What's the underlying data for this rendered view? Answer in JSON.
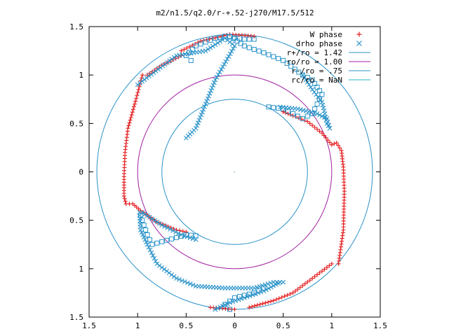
{
  "chart_data": {
    "type": "scatter",
    "title": "m2/n1.5/q2.0/r-+.52-j270/M17.5/512",
    "xlim": [
      -1.5,
      1.5
    ],
    "ylim": [
      -1.5,
      1.5
    ],
    "x_ticks": [
      -1.5,
      -1,
      -0.5,
      0,
      0.5,
      1,
      1.5
    ],
    "y_ticks": [
      -1.5,
      -1,
      -0.5,
      0,
      0.5,
      1,
      1.5
    ],
    "x_tick_labels": [
      "1.5",
      "1",
      "0.5",
      "0",
      "0.5",
      "1",
      "1.5"
    ],
    "y_tick_labels": [
      "1.5",
      "1",
      "0.5",
      "0",
      "0.5",
      "1",
      "1.5"
    ],
    "grid": false,
    "legend_position": "top-right",
    "circles": [
      {
        "name": "r+/ro = 1.42",
        "radius": 1.42,
        "color": "#2a93c9"
      },
      {
        "name": "ro/ro = 1.00",
        "radius": 1.0,
        "color": "#a020a0"
      },
      {
        "name": "r-/ro = .75",
        "radius": 0.75,
        "color": "#2a93c9"
      },
      {
        "name": "rc/ro = NaN",
        "radius": null,
        "color": "#25b6c9"
      }
    ],
    "series": [
      {
        "name": "W phase",
        "marker": "plus",
        "color": "#e41a1c",
        "arms": [
          [
            [
              1.07,
              -0.95
            ],
            [
              1.12,
              -0.6
            ],
            [
              1.13,
              -0.2
            ],
            [
              1.12,
              0.05
            ],
            [
              1.1,
              0.22
            ],
            [
              1.05,
              0.3
            ],
            [
              1.0,
              0.28
            ],
            [
              0.9,
              0.4
            ],
            [
              0.75,
              0.52
            ],
            [
              0.6,
              0.58
            ],
            [
              0.5,
              0.62
            ]
          ],
          [
            [
              -0.95,
              1.0
            ],
            [
              -1.03,
              0.7
            ],
            [
              -1.1,
              0.45
            ],
            [
              -1.13,
              0.2
            ],
            [
              -1.14,
              -0.05
            ],
            [
              -1.14,
              -0.25
            ],
            [
              -1.12,
              -0.33
            ],
            [
              -1.05,
              -0.33
            ],
            [
              -0.97,
              -0.4
            ],
            [
              -0.8,
              -0.52
            ],
            [
              -0.6,
              -0.6
            ],
            [
              -0.5,
              -0.62
            ]
          ],
          [
            [
              1.0,
              -0.95
            ],
            [
              0.8,
              -1.1
            ],
            [
              0.6,
              -1.25
            ],
            [
              0.4,
              -1.33
            ],
            [
              0.15,
              -1.4
            ]
          ],
          [
            [
              -0.55,
              1.2
            ],
            [
              -0.75,
              1.1
            ],
            [
              -0.9,
              1.0
            ]
          ],
          [
            [
              0.2,
              1.4
            ],
            [
              -0.05,
              1.42
            ],
            [
              -0.35,
              1.35
            ],
            [
              -0.55,
              1.25
            ]
          ],
          [
            [
              -0.25,
              -1.4
            ],
            [
              0.0,
              -1.42
            ]
          ]
        ]
      },
      {
        "name": "drho phase",
        "marker": "cross",
        "color": "#2a93c9",
        "arms": [
          [
            [
              0.47,
              0.67
            ],
            [
              0.65,
              0.65
            ],
            [
              0.85,
              0.6
            ],
            [
              0.95,
              0.55
            ],
            [
              0.98,
              0.45
            ],
            [
              0.95,
              0.5
            ],
            [
              0.93,
              0.6
            ],
            [
              0.9,
              0.72
            ],
            [
              0.8,
              0.85
            ],
            [
              0.7,
              1.0
            ]
          ],
          [
            [
              -0.5,
              0.35
            ],
            [
              -0.4,
              0.45
            ],
            [
              -0.2,
              0.95
            ],
            [
              0.0,
              1.3
            ],
            [
              -0.1,
              1.38
            ],
            [
              -0.3,
              1.25
            ],
            [
              -0.6,
              1.2
            ],
            [
              -1.0,
              0.9
            ]
          ],
          [
            [
              -0.95,
              -0.42
            ],
            [
              -0.75,
              -0.55
            ],
            [
              -0.55,
              -0.65
            ],
            [
              -0.4,
              -0.7
            ]
          ],
          [
            [
              -0.98,
              -0.42
            ],
            [
              -0.97,
              -0.6
            ],
            [
              -0.9,
              -0.75
            ],
            [
              -0.8,
              -0.95
            ],
            [
              -0.6,
              -1.1
            ],
            [
              -0.4,
              -1.18
            ],
            [
              -0.1,
              -1.2
            ],
            [
              0.2,
              -1.2
            ],
            [
              0.4,
              -1.14
            ],
            [
              0.5,
              -1.14
            ]
          ],
          [
            [
              0.45,
              -1.15
            ],
            [
              0.3,
              -1.23
            ],
            [
              0.1,
              -1.3
            ],
            [
              -0.05,
              -1.35
            ],
            [
              -0.2,
              -1.42
            ]
          ]
        ]
      }
    ],
    "squares": [
      [
        [
          0.35,
          0.67
        ],
        [
          0.5,
          0.65
        ],
        [
          0.6,
          0.6
        ],
        [
          0.7,
          0.55
        ],
        [
          0.8,
          0.6
        ],
        [
          0.9,
          0.8
        ],
        [
          0.8,
          0.95
        ],
        [
          0.7,
          1.0
        ],
        [
          0.5,
          1.15
        ],
        [
          0.3,
          1.23
        ],
        [
          0.1,
          1.3
        ],
        [
          -0.05,
          1.4
        ]
      ],
      [
        [
          -0.45,
          1.15
        ],
        [
          -0.5,
          1.2
        ],
        [
          -0.4,
          1.3
        ],
        [
          -0.2,
          1.38
        ],
        [
          -0.1,
          1.4
        ],
        [
          0.1,
          1.37
        ],
        [
          0.2,
          1.37
        ]
      ],
      [
        [
          -0.97,
          -0.45
        ],
        [
          -0.9,
          -0.65
        ],
        [
          -0.85,
          -0.75
        ],
        [
          -0.5,
          -0.65
        ],
        [
          -0.4,
          -0.66
        ]
      ],
      [
        [
          0.3,
          -1.2
        ],
        [
          0.2,
          -1.25
        ],
        [
          0.0,
          -1.3
        ],
        [
          -0.1,
          -1.37
        ],
        [
          -0.05,
          -1.42
        ]
      ]
    ]
  },
  "legend": {
    "w_phase_label": "W phase",
    "drho_phase_label": "drho phase",
    "circle_1_label": "r+/ro = 1.42",
    "circle_2_label": "ro/ro = 1.00",
    "circle_3_label": "r-/ro = .75",
    "circle_4_label": "rc/ro = NaN"
  }
}
